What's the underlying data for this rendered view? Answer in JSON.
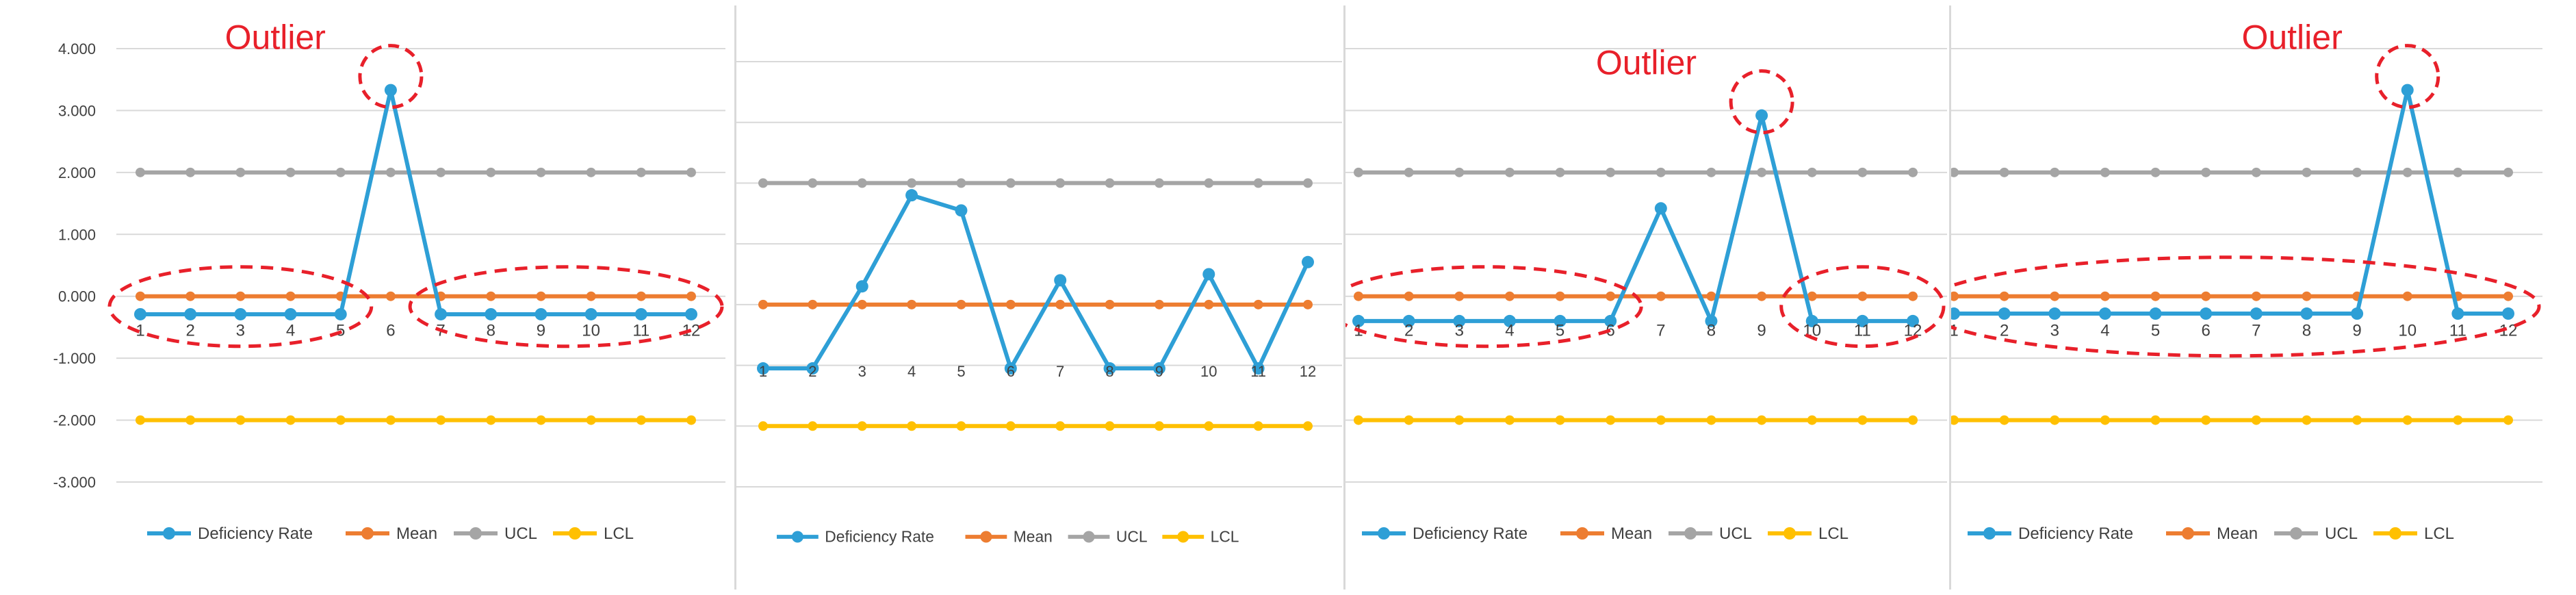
{
  "colors": {
    "deficiency": "#2e9fd6",
    "mean": "#ed7d31",
    "ucl": "#a5a5a5",
    "lcl": "#ffc000",
    "outlier": "#e8202a",
    "grid": "#d9d9d9",
    "tick": "#595959"
  },
  "y_tick_labels": [
    "4.000",
    "3.000",
    "2.000",
    "1.000",
    "0.000",
    "-1.000",
    "-2.000",
    "-3.000"
  ],
  "chart_data": [
    {
      "type": "line",
      "categories": [
        "1",
        "2",
        "3",
        "4",
        "5",
        "6",
        "7",
        "8",
        "9",
        "10",
        "11",
        "12"
      ],
      "ylim": [
        -3,
        4
      ],
      "grid": true,
      "legend_position": "bottom-left",
      "series": [
        {
          "name": "Deficiency Rate",
          "values": [
            -0.29,
            -0.29,
            -0.29,
            -0.29,
            -0.29,
            3.33,
            -0.29,
            -0.29,
            -0.29,
            -0.29,
            -0.29,
            -0.29
          ]
        },
        {
          "name": "Mean",
          "values": [
            0,
            0,
            0,
            0,
            0,
            0,
            0,
            0,
            0,
            0,
            0,
            0
          ]
        },
        {
          "name": "UCL",
          "values": [
            2,
            2,
            2,
            2,
            2,
            2,
            2,
            2,
            2,
            2,
            2,
            2
          ]
        },
        {
          "name": "LCL",
          "values": [
            -2,
            -2,
            -2,
            -2,
            -2,
            -2,
            -2,
            -2,
            -2,
            -2,
            -2,
            -2
          ]
        }
      ],
      "annotations": [
        {
          "text": "Outlier",
          "category_index": 5
        }
      ],
      "highlight_groups": [
        [
          0,
          4
        ],
        [
          6,
          11
        ]
      ]
    },
    {
      "type": "line",
      "categories": [
        "1",
        "2",
        "3",
        "4",
        "5",
        "6",
        "7",
        "8",
        "9",
        "10",
        "11",
        "12"
      ],
      "ylim": [
        -3,
        4
      ],
      "grid": true,
      "legend_position": "bottom-left",
      "series": [
        {
          "name": "Deficiency Rate",
          "values": [
            -1.05,
            -1.05,
            0.3,
            1.8,
            1.55,
            -1.05,
            0.4,
            -1.05,
            -1.05,
            0.5,
            -1.05,
            0.7
          ]
        },
        {
          "name": "Mean",
          "values": [
            0,
            0,
            0,
            0,
            0,
            0,
            0,
            0,
            0,
            0,
            0,
            0
          ]
        },
        {
          "name": "UCL",
          "values": [
            2,
            2,
            2,
            2,
            2,
            2,
            2,
            2,
            2,
            2,
            2,
            2
          ]
        },
        {
          "name": "LCL",
          "values": [
            -2,
            -2,
            -2,
            -2,
            -2,
            -2,
            -2,
            -2,
            -2,
            -2,
            -2,
            -2
          ]
        }
      ],
      "annotations": [],
      "highlight_groups": []
    },
    {
      "type": "line",
      "categories": [
        "1",
        "2",
        "3",
        "4",
        "5",
        "6",
        "7",
        "8",
        "9",
        "10",
        "11",
        "12"
      ],
      "ylim": [
        -3,
        4
      ],
      "grid": true,
      "legend_position": "bottom-left",
      "series": [
        {
          "name": "Deficiency Rate",
          "values": [
            -0.4,
            -0.4,
            -0.4,
            -0.4,
            -0.4,
            -0.4,
            1.42,
            -0.4,
            2.92,
            -0.4,
            -0.4,
            -0.4
          ]
        },
        {
          "name": "Mean",
          "values": [
            0,
            0,
            0,
            0,
            0,
            0,
            0,
            0,
            0,
            0,
            0,
            0
          ]
        },
        {
          "name": "UCL",
          "values": [
            2,
            2,
            2,
            2,
            2,
            2,
            2,
            2,
            2,
            2,
            2,
            2
          ]
        },
        {
          "name": "LCL",
          "values": [
            -2,
            -2,
            -2,
            -2,
            -2,
            -2,
            -2,
            -2,
            -2,
            -2,
            -2,
            -2
          ]
        }
      ],
      "annotations": [
        {
          "text": "Outlier",
          "category_index": 8
        }
      ],
      "highlight_groups": [
        [
          0,
          5
        ],
        [
          9,
          11
        ]
      ]
    },
    {
      "type": "line",
      "categories": [
        "1",
        "2",
        "3",
        "4",
        "5",
        "6",
        "7",
        "8",
        "9",
        "10",
        "11",
        "12"
      ],
      "ylim": [
        -3,
        4
      ],
      "grid": true,
      "legend_position": "bottom-left",
      "series": [
        {
          "name": "Deficiency Rate",
          "values": [
            -0.28,
            -0.28,
            -0.28,
            -0.28,
            -0.28,
            -0.28,
            -0.28,
            -0.28,
            -0.28,
            3.33,
            -0.28,
            -0.28
          ]
        },
        {
          "name": "Mean",
          "values": [
            0,
            0,
            0,
            0,
            0,
            0,
            0,
            0,
            0,
            0,
            0,
            0
          ]
        },
        {
          "name": "UCL",
          "values": [
            2,
            2,
            2,
            2,
            2,
            2,
            2,
            2,
            2,
            2,
            2,
            2
          ]
        },
        {
          "name": "LCL",
          "values": [
            -2,
            -2,
            -2,
            -2,
            -2,
            -2,
            -2,
            -2,
            -2,
            -2,
            -2,
            -2
          ]
        }
      ],
      "annotations": [
        {
          "text": "Outlier",
          "category_index": 9
        }
      ],
      "highlight_groups": [
        [
          0,
          11
        ]
      ]
    }
  ]
}
